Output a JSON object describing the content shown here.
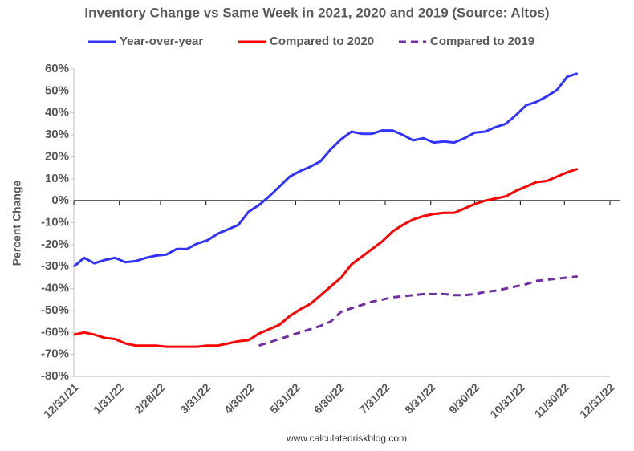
{
  "chart_data": {
    "type": "line",
    "title": "Inventory Change vs Same Week in 2021, 2020 and 2019 (Source: Altos)",
    "y_label": "Percent Change",
    "source": "www.calculatedriskblog.com",
    "x": [
      "2021-12-31",
      "2022-01-07",
      "2022-01-14",
      "2022-01-21",
      "2022-01-28",
      "2022-02-04",
      "2022-02-11",
      "2022-02-18",
      "2022-02-25",
      "2022-03-04",
      "2022-03-11",
      "2022-03-18",
      "2022-03-25",
      "2022-04-01",
      "2022-04-08",
      "2022-04-15",
      "2022-04-22",
      "2022-04-29",
      "2022-05-06",
      "2022-05-13",
      "2022-05-20",
      "2022-05-27",
      "2022-06-03",
      "2022-06-10",
      "2022-06-17",
      "2022-06-24",
      "2022-07-01",
      "2022-07-08",
      "2022-07-15",
      "2022-07-22",
      "2022-07-29",
      "2022-08-05",
      "2022-08-12",
      "2022-08-19",
      "2022-08-26",
      "2022-09-02",
      "2022-09-09",
      "2022-09-16",
      "2022-09-23",
      "2022-09-30",
      "2022-10-07",
      "2022-10-14",
      "2022-10-21",
      "2022-10-28",
      "2022-11-04",
      "2022-11-11",
      "2022-11-18",
      "2022-11-25",
      "2022-12-02",
      "2022-12-09"
    ],
    "series": [
      {
        "name": "Year-over-year",
        "color": "#3333ff",
        "dash": false,
        "values": [
          -30,
          -26,
          -28.5,
          -27,
          -26,
          -28,
          -27.5,
          -26,
          -25,
          -24.5,
          -22,
          -22,
          -19.5,
          -18,
          -15,
          -13,
          -11,
          -5,
          -2,
          2,
          6.5,
          11,
          13.5,
          15.5,
          18,
          23.5,
          28,
          31.5,
          30.5,
          30.5,
          32,
          32,
          30,
          27.5,
          28.5,
          26.5,
          27,
          26.5,
          28.5,
          31,
          31.5,
          33.5,
          35,
          39,
          43.5,
          45,
          47.5,
          50.5,
          56.5,
          58
        ]
      },
      {
        "name": "Compared to 2020",
        "color": "#ff0000",
        "dash": false,
        "values": [
          -61,
          -60,
          -61,
          -62.5,
          -63,
          -65,
          -66,
          -66,
          -66,
          -66.5,
          -66.5,
          -66.5,
          -66.5,
          -66,
          -66,
          -65,
          -64,
          -63.5,
          -60.5,
          -58.5,
          -56.5,
          -52.5,
          -49.5,
          -47,
          -43,
          -39,
          -35,
          -29,
          -25.5,
          -22,
          -18.5,
          -14,
          -11,
          -8.5,
          -7,
          -6,
          -5.5,
          -5.5,
          -3.5,
          -1.5,
          0,
          1,
          2,
          4.5,
          6.5,
          8.5,
          9,
          11,
          13,
          14.5
        ]
      },
      {
        "name": "Compared to 2019",
        "color": "#7030a0",
        "dash": true,
        "values": [
          null,
          null,
          null,
          null,
          null,
          null,
          null,
          null,
          null,
          null,
          null,
          null,
          null,
          null,
          null,
          null,
          null,
          null,
          -66,
          -64.5,
          -63,
          -61.5,
          -60,
          -58.5,
          -57,
          -55,
          -50.5,
          -49,
          -47.5,
          -46,
          -45,
          -44,
          -43.5,
          -43,
          -42.5,
          -42.5,
          -42.5,
          -43,
          -43,
          -42.5,
          -41.5,
          -41,
          -40,
          -39,
          -38,
          -36.5,
          -36,
          -35.5,
          -35,
          -34.5
        ]
      }
    ],
    "xlim": [
      "2021-12-31",
      "2022-12-31"
    ],
    "xticks": [
      {
        "value": "2021-12-31",
        "label": "12/31/21"
      },
      {
        "value": "2022-01-31",
        "label": "1/31/22"
      },
      {
        "value": "2022-02-28",
        "label": "2/28/22"
      },
      {
        "value": "2022-03-31",
        "label": "3/31/22"
      },
      {
        "value": "2022-04-30",
        "label": "4/30/22"
      },
      {
        "value": "2022-05-31",
        "label": "5/31/22"
      },
      {
        "value": "2022-06-30",
        "label": "6/30/22"
      },
      {
        "value": "2022-07-31",
        "label": "7/31/22"
      },
      {
        "value": "2022-08-31",
        "label": "8/31/22"
      },
      {
        "value": "2022-09-30",
        "label": "9/30/22"
      },
      {
        "value": "2022-10-31",
        "label": "10/31/22"
      },
      {
        "value": "2022-11-30",
        "label": "11/30/22"
      },
      {
        "value": "2022-12-31",
        "label": "12/31/22"
      }
    ],
    "ylim": [
      -80,
      60
    ],
    "yticks": [
      {
        "value": -80,
        "label": "-80%"
      },
      {
        "value": -70,
        "label": "-70%"
      },
      {
        "value": -60,
        "label": "-60%"
      },
      {
        "value": -50,
        "label": "-50%"
      },
      {
        "value": -40,
        "label": "-40%"
      },
      {
        "value": -30,
        "label": "-30%"
      },
      {
        "value": -20,
        "label": "-20%"
      },
      {
        "value": -10,
        "label": "-10%"
      },
      {
        "value": 0,
        "label": "0%"
      },
      {
        "value": 10,
        "label": "10%"
      },
      {
        "value": 20,
        "label": "20%"
      },
      {
        "value": 30,
        "label": "30%"
      },
      {
        "value": 40,
        "label": "40%"
      },
      {
        "value": 50,
        "label": "50%"
      },
      {
        "value": 60,
        "label": "60%"
      }
    ],
    "grid": false,
    "legend": "top"
  }
}
